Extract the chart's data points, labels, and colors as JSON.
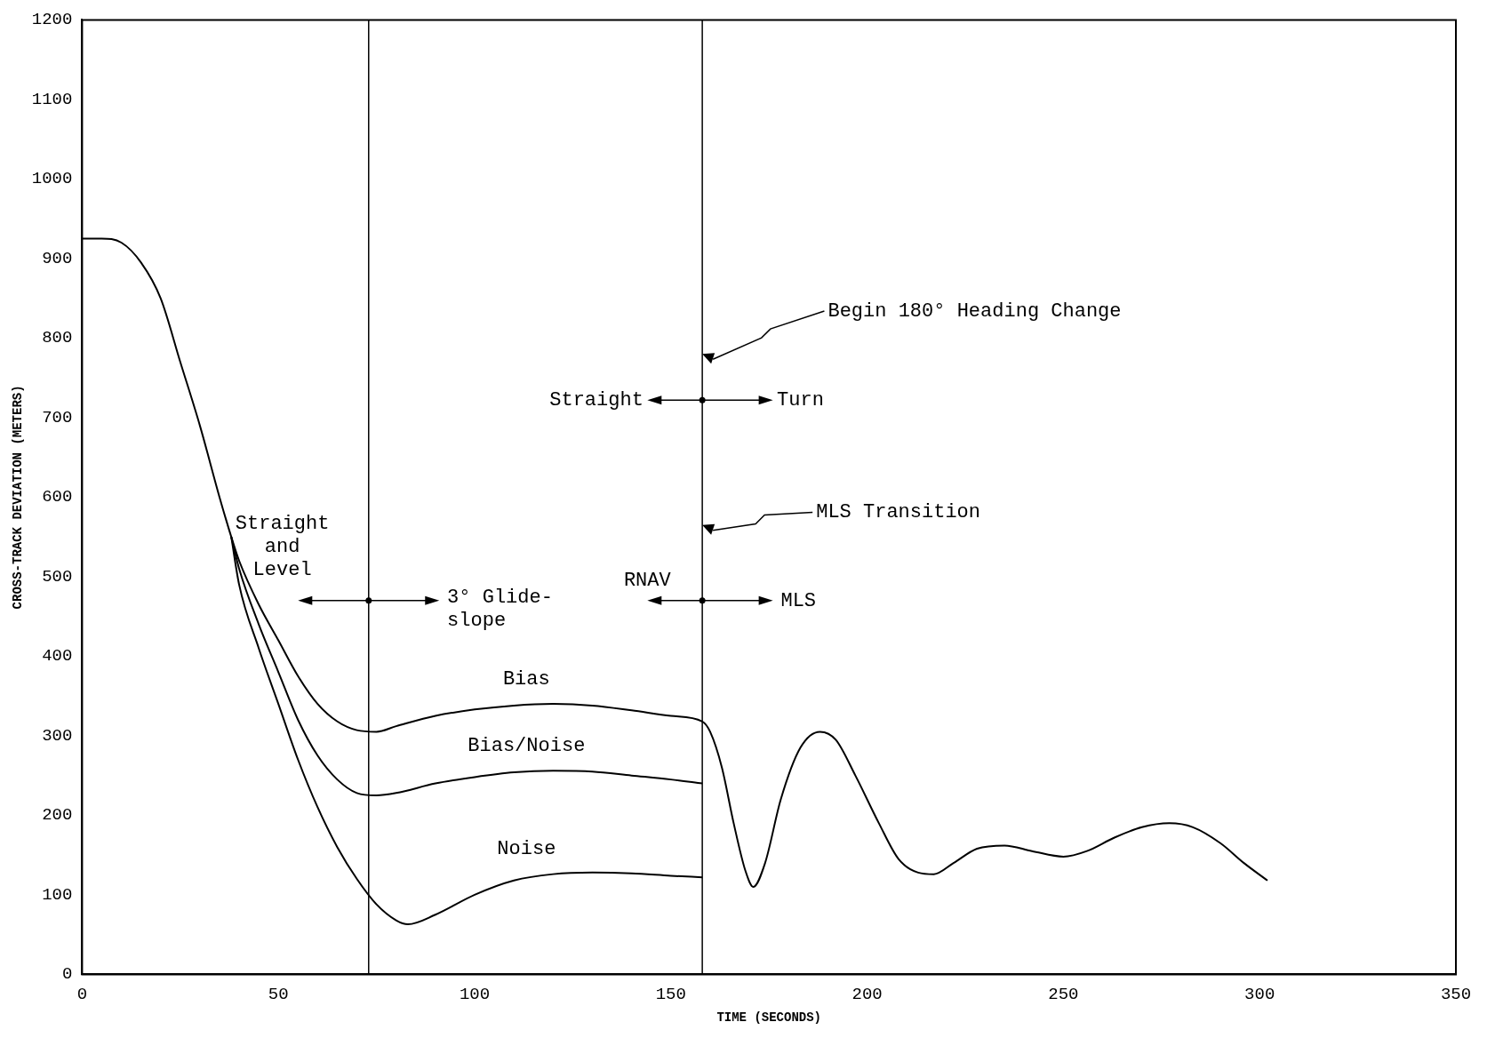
{
  "chart_data": {
    "type": "line",
    "xlabel": "TIME (SECONDS)",
    "ylabel": "CROSS-TRACK DEVIATION (METERS)",
    "xlim": [
      0,
      350
    ],
    "xticks": [
      0,
      50,
      100,
      150,
      200,
      250,
      300,
      350
    ],
    "ylim": [
      0,
      1200
    ],
    "yticks": [
      0,
      100,
      200,
      300,
      400,
      500,
      600,
      700,
      800,
      900,
      1000,
      1100,
      1200
    ],
    "grid": false,
    "legend": false,
    "marker": "none",
    "line_style": "solid",
    "series": [
      {
        "name": "Bias",
        "color": "#000000",
        "x": [
          0,
          5,
          10,
          15,
          20,
          25,
          30,
          35,
          38,
          40,
          45,
          50,
          55,
          60,
          65,
          70,
          75,
          80,
          90,
          100,
          110,
          120,
          130,
          140,
          150,
          158,
          160,
          163,
          166,
          169,
          171,
          174,
          178,
          183,
          188,
          192,
          197,
          203,
          208,
          213,
          217,
          222,
          228,
          235,
          242,
          250,
          256,
          263,
          270,
          277,
          283,
          290,
          296,
          302
        ],
        "values": [
          925,
          925,
          920,
          895,
          850,
          770,
          690,
          600,
          550,
          520,
          465,
          420,
          375,
          340,
          318,
          307,
          305,
          312,
          325,
          333,
          338,
          340,
          338,
          332,
          325,
          318,
          305,
          260,
          190,
          130,
          110,
          140,
          220,
          285,
          305,
          295,
          250,
          190,
          145,
          128,
          126,
          140,
          158,
          162,
          155,
          148,
          155,
          172,
          185,
          190,
          185,
          165,
          140,
          118
        ]
      },
      {
        "name": "Bias/Noise",
        "color": "#000000",
        "x": [
          38,
          40,
          45,
          50,
          55,
          60,
          65,
          70,
          75,
          80,
          90,
          100,
          110,
          120,
          130,
          140,
          150,
          158
        ],
        "values": [
          550,
          510,
          440,
          380,
          320,
          275,
          245,
          228,
          225,
          228,
          240,
          248,
          254,
          256,
          255,
          250,
          245,
          240
        ]
      },
      {
        "name": "Noise",
        "color": "#000000",
        "x": [
          38,
          40,
          45,
          50,
          55,
          60,
          65,
          70,
          75,
          80,
          83,
          90,
          100,
          110,
          120,
          130,
          140,
          150,
          158
        ],
        "values": [
          550,
          490,
          410,
          340,
          270,
          210,
          160,
          120,
          88,
          68,
          63,
          75,
          100,
          118,
          126,
          128,
          127,
          124,
          122
        ]
      }
    ],
    "ref_lines": [
      {
        "axis": "x",
        "value": 73,
        "color": "#000000"
      },
      {
        "axis": "x",
        "value": 158,
        "color": "#000000"
      }
    ],
    "annotations": [
      {
        "text": "Straight\nand\nLevel",
        "x": 73,
        "y": 470
      },
      "3° Glide-\nslope",
      {
        "text": "RNAV",
        "x": 158,
        "y": 470
      },
      "MLS",
      "Straight",
      "Turn",
      "MLS Transition",
      "Begin 180° Heading Change"
    ]
  }
}
